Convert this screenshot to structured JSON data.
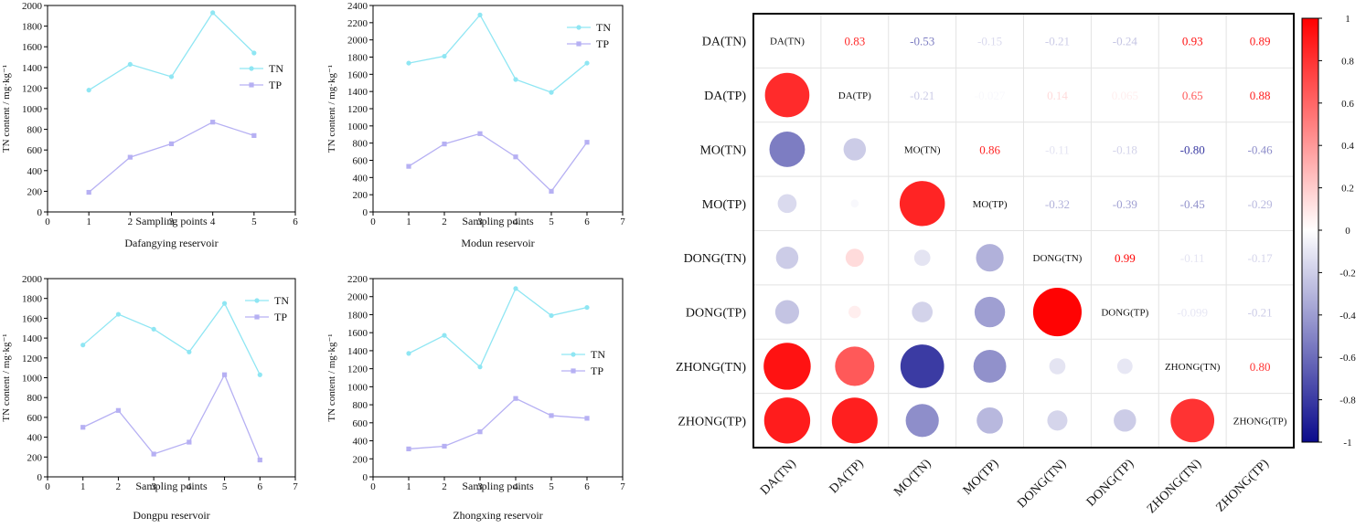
{
  "chart_data": [
    {
      "type": "line",
      "title": "Dafangying reservoir",
      "xlabel": "Sampling points",
      "ylabel": "TN content / mg·kg⁻¹",
      "xlim": [
        0,
        6
      ],
      "ylim": [
        0,
        2000
      ],
      "xticks": [
        0,
        1,
        2,
        3,
        4,
        5,
        6
      ],
      "yticks": [
        0,
        200,
        400,
        600,
        800,
        1000,
        1200,
        1400,
        1600,
        1800,
        2000
      ],
      "legend_position": "right",
      "series": [
        {
          "name": "TN",
          "color": "#8fe6f3",
          "x": [
            1,
            2,
            3,
            4,
            5
          ],
          "values": [
            1180,
            1430,
            1310,
            1930,
            1540
          ]
        },
        {
          "name": "TP",
          "color": "#b6b0f3",
          "x": [
            1,
            2,
            3,
            4,
            5
          ],
          "values": [
            190,
            530,
            660,
            870,
            740
          ]
        }
      ]
    },
    {
      "type": "line",
      "title": "Modun reservoir",
      "xlabel": "Sampling points",
      "ylabel": "TN content / mg·kg⁻¹",
      "xlim": [
        0,
        7
      ],
      "ylim": [
        0,
        2400
      ],
      "xticks": [
        0,
        1,
        2,
        3,
        4,
        5,
        6,
        7
      ],
      "yticks": [
        0,
        200,
        400,
        600,
        800,
        1000,
        1200,
        1400,
        1600,
        1800,
        2000,
        2200,
        2400
      ],
      "legend_position": "top-right",
      "series": [
        {
          "name": "TN",
          "color": "#8fe6f3",
          "x": [
            1,
            2,
            3,
            4,
            5,
            6
          ],
          "values": [
            1730,
            1810,
            2290,
            1540,
            1390,
            1730
          ]
        },
        {
          "name": "TP",
          "color": "#b6b0f3",
          "x": [
            1,
            2,
            3,
            4,
            5,
            6
          ],
          "values": [
            530,
            790,
            910,
            640,
            240,
            810
          ]
        }
      ]
    },
    {
      "type": "line",
      "title": "Dongpu reservoir",
      "xlabel": "Sampling points",
      "ylabel": "TN content / mg·kg⁻¹",
      "xlim": [
        0,
        7
      ],
      "ylim": [
        0,
        2000
      ],
      "xticks": [
        0,
        1,
        2,
        3,
        4,
        5,
        6,
        7
      ],
      "yticks": [
        0,
        200,
        400,
        600,
        800,
        1000,
        1200,
        1400,
        1600,
        1800,
        2000
      ],
      "legend_position": "top-right",
      "series": [
        {
          "name": "TN",
          "color": "#8fe6f3",
          "x": [
            1,
            2,
            3,
            4,
            5,
            6
          ],
          "values": [
            1330,
            1640,
            1490,
            1260,
            1750,
            1030
          ]
        },
        {
          "name": "TP",
          "color": "#b6b0f3",
          "x": [
            1,
            2,
            3,
            4,
            5,
            6
          ],
          "values": [
            500,
            670,
            230,
            350,
            1030,
            170
          ]
        }
      ]
    },
    {
      "type": "line",
      "title": "Zhongxing reservoir",
      "xlabel": "Sampling points",
      "ylabel": "TN content / mg·kg⁻¹",
      "xlim": [
        0,
        7
      ],
      "ylim": [
        0,
        2200
      ],
      "xticks": [
        0,
        1,
        2,
        3,
        4,
        5,
        6,
        7
      ],
      "yticks": [
        0,
        200,
        400,
        600,
        800,
        1000,
        1200,
        1400,
        1600,
        1800,
        2000,
        2200
      ],
      "legend_position": "right",
      "series": [
        {
          "name": "TN",
          "color": "#8fe6f3",
          "x": [
            1,
            2,
            3,
            4,
            5,
            6
          ],
          "values": [
            1370,
            1570,
            1220,
            2090,
            1790,
            1880
          ]
        },
        {
          "name": "TP",
          "color": "#b6b0f3",
          "x": [
            1,
            2,
            3,
            4,
            5,
            6
          ],
          "values": [
            310,
            340,
            500,
            870,
            680,
            650
          ]
        }
      ]
    },
    {
      "type": "heatmap",
      "subtype": "correlation-matrix",
      "labels": [
        "DA(TN)",
        "DA(TP)",
        "MO(TN)",
        "MO(TP)",
        "DONG(TN)",
        "DONG(TP)",
        "ZHONG(TN)",
        "ZHONG(TP)"
      ],
      "upper_display": "numbers",
      "lower_display": "circles",
      "colorbar": {
        "range": [
          -1,
          1
        ],
        "ticks": [
          "1",
          "0.8",
          "0.6",
          "0.4",
          "0.2",
          "0",
          "-0.2",
          "-0.4",
          "-0.6",
          "-0.8",
          "-1"
        ],
        "colors": [
          "#0a0a8c",
          "#ffffff",
          "#ff0000"
        ]
      },
      "values": [
        [
          1,
          0.83,
          -0.53,
          -0.15,
          -0.21,
          -0.24,
          0.93,
          0.89
        ],
        [
          0.83,
          1,
          -0.21,
          -0.027,
          0.14,
          0.065,
          0.65,
          0.88
        ],
        [
          -0.53,
          -0.21,
          1,
          0.86,
          -0.11,
          -0.18,
          -0.8,
          -0.46
        ],
        [
          -0.15,
          -0.027,
          0.86,
          1,
          -0.32,
          -0.39,
          -0.45,
          -0.29
        ],
        [
          -0.21,
          0.14,
          -0.11,
          -0.32,
          1,
          0.99,
          -0.11,
          -0.17
        ],
        [
          -0.24,
          0.065,
          -0.18,
          -0.39,
          0.99,
          1,
          -0.099,
          -0.21
        ],
        [
          0.93,
          0.65,
          -0.8,
          -0.45,
          -0.11,
          -0.099,
          1,
          0.8
        ],
        [
          0.89,
          0.88,
          -0.46,
          -0.29,
          -0.17,
          -0.21,
          0.8,
          1
        ]
      ],
      "value_labels": [
        [
          null,
          "0.83",
          "-0.53",
          "-0.15",
          "-0.21",
          "-0.24",
          "0.93",
          "0.89"
        ],
        [
          null,
          null,
          "-0.21",
          "-0.027",
          "0.14",
          "0.065",
          "0.65",
          "0.88"
        ],
        [
          null,
          null,
          null,
          "0.86",
          "-0.11",
          "-0.18",
          "-0.80",
          "-0.46"
        ],
        [
          null,
          null,
          null,
          null,
          "-0.32",
          "-0.39",
          "-0.45",
          "-0.29"
        ],
        [
          null,
          null,
          null,
          null,
          null,
          "0.99",
          "-0.11",
          "-0.17"
        ],
        [
          null,
          null,
          null,
          null,
          null,
          null,
          "-0.099",
          "-0.21"
        ],
        [
          null,
          null,
          null,
          null,
          null,
          null,
          null,
          "0.80"
        ],
        [
          null,
          null,
          null,
          null,
          null,
          null,
          null,
          null
        ]
      ]
    }
  ]
}
